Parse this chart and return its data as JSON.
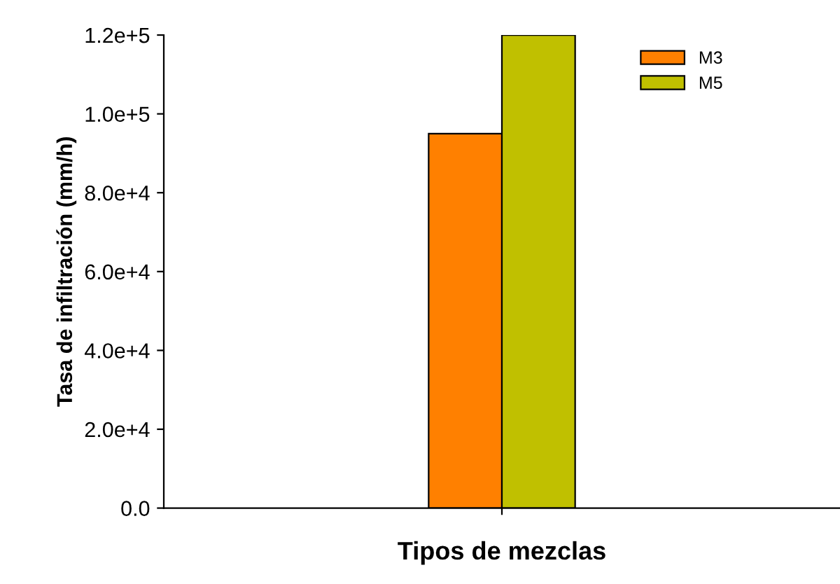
{
  "chart_data": {
    "type": "bar",
    "xlabel": "Tipos de mezclas",
    "ylabel": "Tasa de infiltración (mm/h)",
    "categories": [
      null
    ],
    "series": [
      {
        "name": "M3",
        "color": "#ff8000",
        "values": [
          95000
        ]
      },
      {
        "name": "M5",
        "color": "#c0c000",
        "values": [
          120000
        ]
      }
    ],
    "ylim": [
      0,
      120000
    ],
    "yticks": [
      {
        "value": 0,
        "label": "0.0"
      },
      {
        "value": 20000,
        "label": "2.0e+4"
      },
      {
        "value": 40000,
        "label": "4.0e+4"
      },
      {
        "value": 60000,
        "label": "6.0e+4"
      },
      {
        "value": 80000,
        "label": "8.0e+4"
      },
      {
        "value": 100000,
        "label": "1.0e+5"
      },
      {
        "value": 120000,
        "label": "1.2e+5"
      }
    ],
    "legend": "top right",
    "grid": false
  }
}
